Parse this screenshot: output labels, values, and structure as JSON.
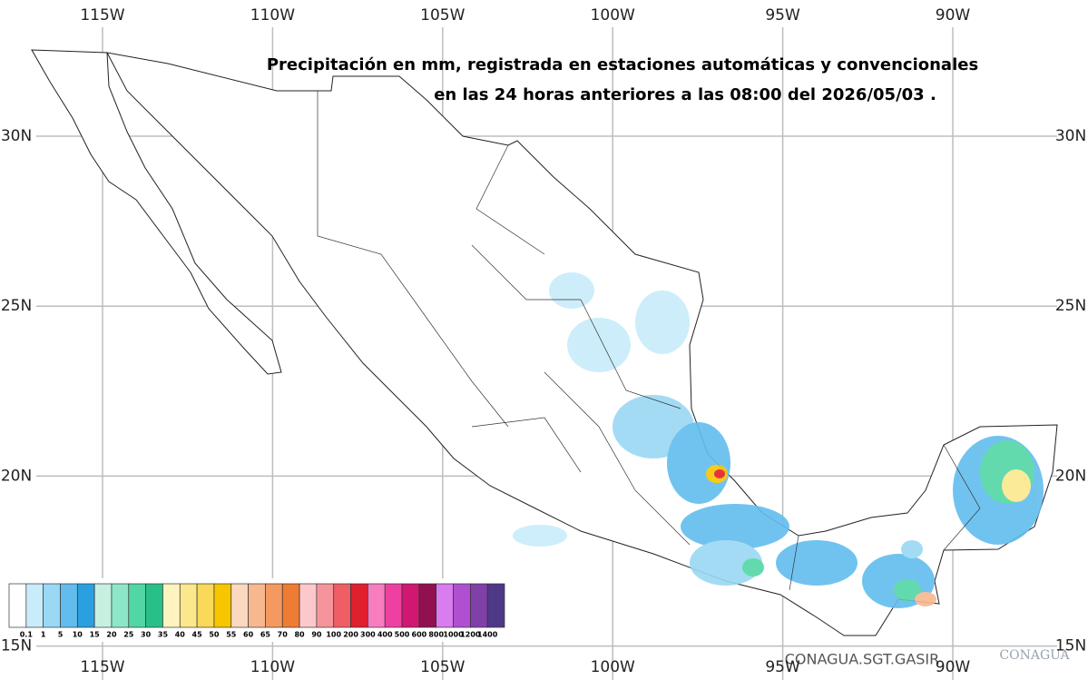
{
  "map": {
    "title": [
      "Precipitación en mm, registrada en estaciones automáticas y convencionales",
      "en las 24 horas anteriores a las 08:00 del  2026/05/03 ."
    ],
    "lon_labels": [
      "115W",
      "110W",
      "105W",
      "100W",
      "95W",
      "90W"
    ],
    "lat_labels": [
      "30N",
      "25N",
      "20N",
      "15N"
    ],
    "legend": {
      "labels": [
        "0.1",
        "1",
        "5",
        "10",
        "15",
        "20",
        "25",
        "30",
        "35",
        "40",
        "45",
        "50",
        "55",
        "60",
        "65",
        "70",
        "80",
        "90",
        "100",
        "200",
        "300",
        "400",
        "500",
        "600",
        "800",
        "1000",
        "1200",
        "1400"
      ],
      "colors": [
        "#ffffff",
        "#c8ecfa",
        "#9ad8f5",
        "#62bdee",
        "#2aa0e0",
        "#c8f0e0",
        "#8ee6c8",
        "#52d6a6",
        "#28c088",
        "#fdf4c0",
        "#fbe88c",
        "#f9d85a",
        "#f7c600",
        "#fbd8c0",
        "#f7b890",
        "#f49a60",
        "#ef7c34",
        "#fcc8cc",
        "#f6949c",
        "#ef5e64",
        "#e0202c",
        "#f77cc0",
        "#ee40a0",
        "#d01870",
        "#901050",
        "#d87cf0",
        "#b050d0",
        "#8040a8",
        "#503888"
      ]
    },
    "credit": "CONAGUA.SGT.GASIR",
    "logo": "CONAGUA"
  }
}
